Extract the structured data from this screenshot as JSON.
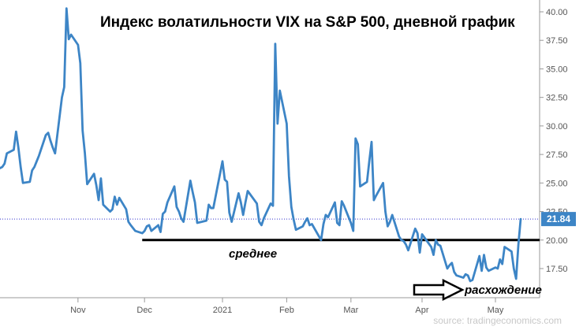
{
  "chart_data": {
    "type": "line",
    "title": "Индекс волатильности VIX на S&P 500, дневной график",
    "xlabel": "",
    "ylabel": "",
    "ylim": [
      15.0,
      41.0
    ],
    "y_ticks": [
      "17.50",
      "20.00",
      "22.50",
      "25.00",
      "27.50",
      "30.00",
      "32.50",
      "35.00",
      "37.50",
      "40.00"
    ],
    "y_tick_values": [
      17.5,
      20,
      22.5,
      25,
      27.5,
      30,
      32.5,
      35,
      37.5,
      40
    ],
    "x_ticks": [
      {
        "label": "Nov",
        "date": "2020-11-02"
      },
      {
        "label": "Dec",
        "date": "2020-12-01"
      },
      {
        "label": "2021",
        "date": "2021-01-04"
      },
      {
        "label": "Feb",
        "date": "2021-02-01"
      },
      {
        "label": "Mar",
        "date": "2021-03-01"
      },
      {
        "label": "Apr",
        "date": "2021-04-01"
      },
      {
        "label": "May",
        "date": "2021-05-03"
      }
    ],
    "grid": false,
    "line_color": "#3d85c6",
    "last_value": "21.84",
    "last_value_badge_color": "#3d85c6",
    "series": [
      {
        "values": [
          [
            "2020-09-29",
            26.3
          ],
          [
            "2020-09-30",
            26.4
          ],
          [
            "2020-10-01",
            26.7
          ],
          [
            "2020-10-02",
            27.6
          ],
          [
            "2020-10-05",
            27.9
          ],
          [
            "2020-10-06",
            29.5
          ],
          [
            "2020-10-07",
            28.1
          ],
          [
            "2020-10-08",
            26.4
          ],
          [
            "2020-10-09",
            25.0
          ],
          [
            "2020-10-12",
            25.1
          ],
          [
            "2020-10-13",
            26.1
          ],
          [
            "2020-10-14",
            26.4
          ],
          [
            "2020-10-15",
            26.9
          ],
          [
            "2020-10-16",
            27.4
          ],
          [
            "2020-10-19",
            29.2
          ],
          [
            "2020-10-20",
            29.4
          ],
          [
            "2020-10-21",
            28.7
          ],
          [
            "2020-10-22",
            28.1
          ],
          [
            "2020-10-23",
            27.6
          ],
          [
            "2020-10-26",
            32.5
          ],
          [
            "2020-10-27",
            33.4
          ],
          [
            "2020-10-28",
            40.3
          ],
          [
            "2020-10-29",
            37.6
          ],
          [
            "2020-10-30",
            38.0
          ],
          [
            "2020-11-02",
            37.1
          ],
          [
            "2020-11-03",
            35.5
          ],
          [
            "2020-11-04",
            29.6
          ],
          [
            "2020-11-05",
            27.6
          ],
          [
            "2020-11-06",
            24.9
          ],
          [
            "2020-11-09",
            25.8
          ],
          [
            "2020-11-10",
            24.8
          ],
          [
            "2020-11-11",
            23.5
          ],
          [
            "2020-11-12",
            25.4
          ],
          [
            "2020-11-13",
            23.1
          ],
          [
            "2020-11-16",
            22.5
          ],
          [
            "2020-11-17",
            22.7
          ],
          [
            "2020-11-18",
            23.8
          ],
          [
            "2020-11-19",
            23.1
          ],
          [
            "2020-11-20",
            23.7
          ],
          [
            "2020-11-23",
            22.7
          ],
          [
            "2020-11-24",
            21.6
          ],
          [
            "2020-11-25",
            21.3
          ],
          [
            "2020-11-27",
            20.8
          ],
          [
            "2020-11-30",
            20.6
          ],
          [
            "2020-12-01",
            20.8
          ],
          [
            "2020-12-02",
            21.2
          ],
          [
            "2020-12-03",
            21.3
          ],
          [
            "2020-12-04",
            20.8
          ],
          [
            "2020-12-07",
            21.3
          ],
          [
            "2020-12-08",
            20.7
          ],
          [
            "2020-12-09",
            22.3
          ],
          [
            "2020-12-10",
            22.5
          ],
          [
            "2020-12-11",
            23.3
          ],
          [
            "2020-12-14",
            24.7
          ],
          [
            "2020-12-15",
            22.9
          ],
          [
            "2020-12-16",
            22.5
          ],
          [
            "2020-12-17",
            21.9
          ],
          [
            "2020-12-18",
            21.6
          ],
          [
            "2020-12-21",
            25.2
          ],
          [
            "2020-12-22",
            24.2
          ],
          [
            "2020-12-23",
            23.3
          ],
          [
            "2020-12-24",
            21.5
          ],
          [
            "2020-12-28",
            21.7
          ],
          [
            "2020-12-29",
            23.1
          ],
          [
            "2020-12-30",
            22.8
          ],
          [
            "2020-12-31",
            22.8
          ],
          [
            "2021-01-04",
            26.9
          ],
          [
            "2021-01-05",
            25.3
          ],
          [
            "2021-01-06",
            25.1
          ],
          [
            "2021-01-07",
            22.4
          ],
          [
            "2021-01-08",
            21.6
          ],
          [
            "2021-01-11",
            24.1
          ],
          [
            "2021-01-12",
            23.3
          ],
          [
            "2021-01-13",
            22.2
          ],
          [
            "2021-01-14",
            23.3
          ],
          [
            "2021-01-15",
            24.3
          ],
          [
            "2021-01-19",
            23.2
          ],
          [
            "2021-01-20",
            21.6
          ],
          [
            "2021-01-21",
            21.3
          ],
          [
            "2021-01-22",
            21.9
          ],
          [
            "2021-01-25",
            23.2
          ],
          [
            "2021-01-26",
            23.0
          ],
          [
            "2021-01-27",
            37.2
          ],
          [
            "2021-01-28",
            30.2
          ],
          [
            "2021-01-29",
            33.1
          ],
          [
            "2021-02-01",
            30.2
          ],
          [
            "2021-02-02",
            25.6
          ],
          [
            "2021-02-03",
            22.9
          ],
          [
            "2021-02-04",
            21.8
          ],
          [
            "2021-02-05",
            20.9
          ],
          [
            "2021-02-08",
            21.2
          ],
          [
            "2021-02-09",
            21.6
          ],
          [
            "2021-02-10",
            21.9
          ],
          [
            "2021-02-11",
            21.3
          ],
          [
            "2021-02-12",
            21.4
          ],
          [
            "2021-02-16",
            20.0
          ],
          [
            "2021-02-17",
            21.4
          ],
          [
            "2021-02-18",
            22.2
          ],
          [
            "2021-02-19",
            22.0
          ],
          [
            "2021-02-22",
            23.3
          ],
          [
            "2021-02-23",
            21.5
          ],
          [
            "2021-02-24",
            21.3
          ],
          [
            "2021-02-25",
            23.4
          ],
          [
            "2021-02-26",
            23.0
          ],
          [
            "2021-03-01",
            21.5
          ],
          [
            "2021-03-02",
            20.8
          ],
          [
            "2021-03-03",
            28.9
          ],
          [
            "2021-03-04",
            28.4
          ],
          [
            "2021-03-05",
            24.7
          ],
          [
            "2021-03-08",
            25.1
          ],
          [
            "2021-03-09",
            26.9
          ],
          [
            "2021-03-10",
            28.6
          ],
          [
            "2021-03-11",
            23.5
          ],
          [
            "2021-03-12",
            23.9
          ],
          [
            "2021-03-15",
            25.0
          ],
          [
            "2021-03-16",
            22.5
          ],
          [
            "2021-03-17",
            21.2
          ],
          [
            "2021-03-18",
            21.6
          ],
          [
            "2021-03-19",
            22.2
          ],
          [
            "2021-03-22",
            20.3
          ],
          [
            "2021-03-23",
            20.0
          ],
          [
            "2021-03-24",
            19.9
          ],
          [
            "2021-03-25",
            19.6
          ],
          [
            "2021-03-26",
            19.1
          ],
          [
            "2021-03-29",
            21.0
          ],
          [
            "2021-03-30",
            20.6
          ],
          [
            "2021-03-31",
            18.9
          ],
          [
            "2021-04-01",
            20.5
          ],
          [
            "2021-04-05",
            19.4
          ],
          [
            "2021-04-06",
            18.7
          ],
          [
            "2021-04-07",
            20.0
          ],
          [
            "2021-04-08",
            19.6
          ],
          [
            "2021-04-09",
            19.5
          ],
          [
            "2021-04-12",
            17.5
          ],
          [
            "2021-04-13",
            17.8
          ],
          [
            "2021-04-14",
            18.0
          ],
          [
            "2021-04-15",
            17.2
          ],
          [
            "2021-04-16",
            16.9
          ],
          [
            "2021-04-19",
            16.7
          ],
          [
            "2021-04-20",
            17.0
          ],
          [
            "2021-04-21",
            16.9
          ],
          [
            "2021-04-22",
            16.4
          ],
          [
            "2021-04-23",
            16.5
          ],
          [
            "2021-04-26",
            18.6
          ],
          [
            "2021-04-27",
            17.3
          ],
          [
            "2021-04-28",
            18.7
          ],
          [
            "2021-04-29",
            17.6
          ],
          [
            "2021-04-30",
            17.3
          ],
          [
            "2021-05-03",
            17.6
          ],
          [
            "2021-05-04",
            17.5
          ],
          [
            "2021-05-05",
            18.3
          ],
          [
            "2021-05-06",
            17.9
          ],
          [
            "2021-05-07",
            19.4
          ],
          [
            "2021-05-10",
            19.0
          ],
          [
            "2021-05-11",
            17.5
          ],
          [
            "2021-05-12",
            16.6
          ],
          [
            "2021-05-13",
            19.6
          ],
          [
            "2021-05-14",
            21.84
          ]
        ]
      }
    ],
    "annotations": [
      {
        "text": "среднее",
        "kind": "horizontal-line",
        "y": 20.0,
        "x_start": "2020-11-30",
        "x_end": "2021-05-14"
      },
      {
        "text": "расхождение",
        "kind": "arrow",
        "y": 16.0
      }
    ],
    "reference_line": {
      "y": 21.84,
      "style": "dotted",
      "color": "#3333cc"
    },
    "source": "source: tradingeconomics.com"
  }
}
